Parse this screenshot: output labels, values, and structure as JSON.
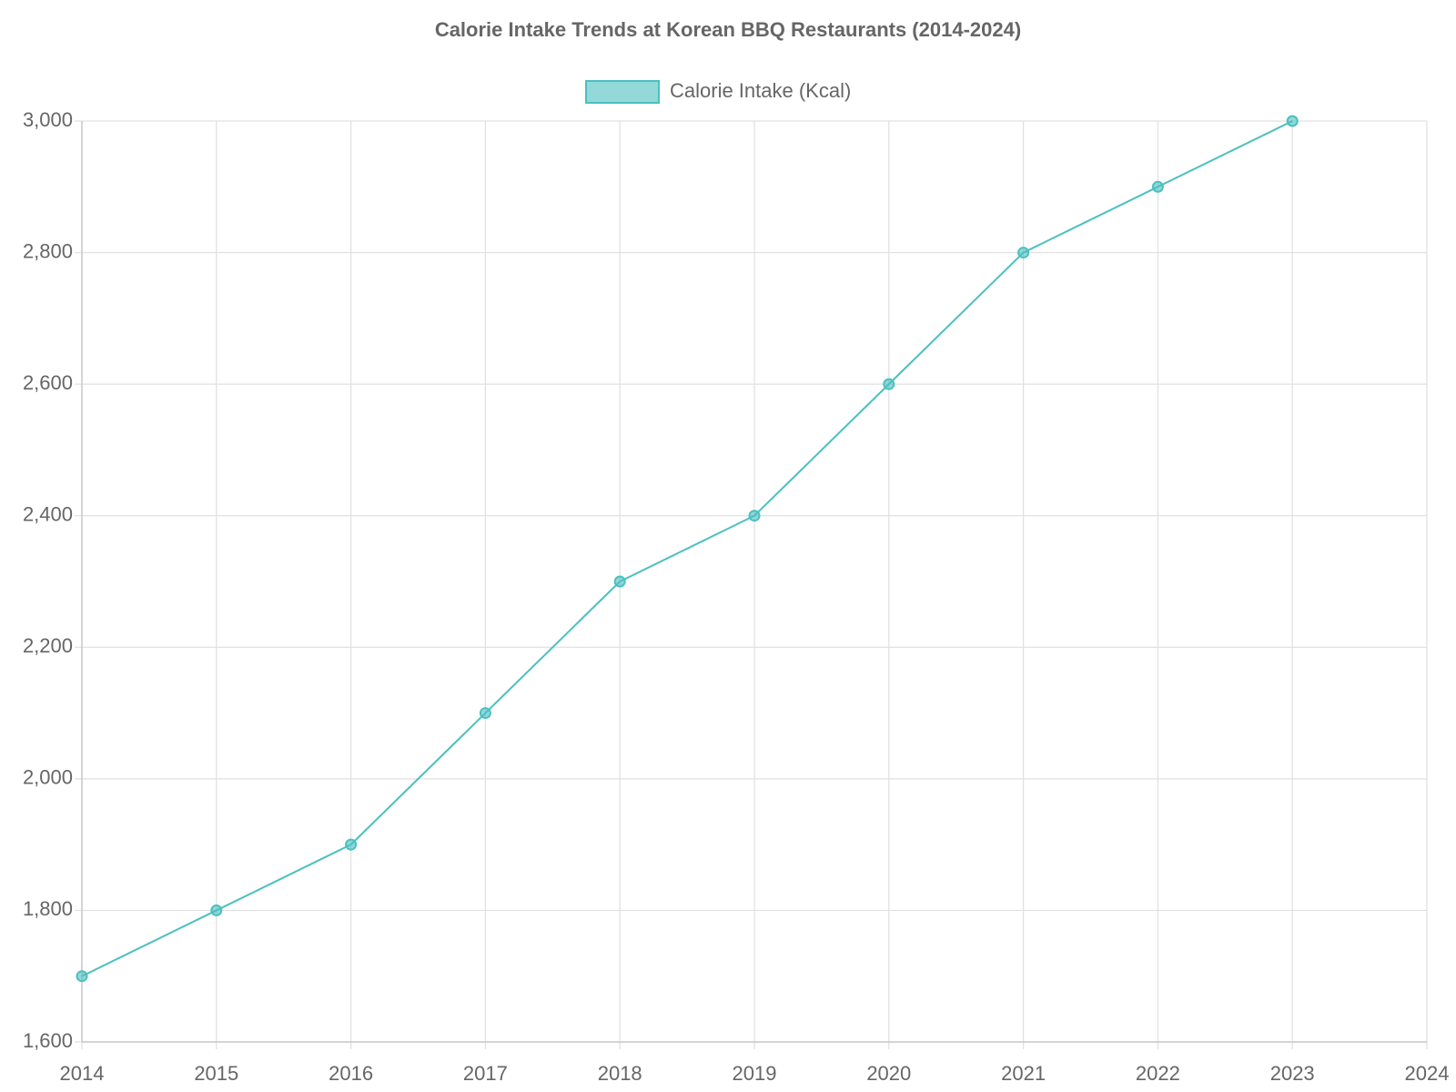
{
  "chart_data": {
    "type": "line",
    "title": "Calorie Intake Trends at Korean BBQ Restaurants (2014-2024)",
    "x": [
      2014,
      2015,
      2016,
      2017,
      2018,
      2019,
      2020,
      2021,
      2022,
      2023
    ],
    "series": [
      {
        "name": "Calorie Intake (Kcal)",
        "color": "#4bc0c0",
        "values": [
          1700,
          1800,
          1900,
          2100,
          2300,
          2400,
          2600,
          2800,
          2900,
          3000
        ]
      }
    ],
    "xlim": [
      2014,
      2024
    ],
    "xticks": [
      2014,
      2015,
      2016,
      2017,
      2018,
      2019,
      2020,
      2021,
      2022,
      2023,
      2024
    ],
    "ylim": [
      1600,
      3000
    ],
    "yticks": [
      {
        "value": 1600,
        "label": "1,600"
      },
      {
        "value": 1800,
        "label": "1,800"
      },
      {
        "value": 2000,
        "label": "2,000"
      },
      {
        "value": 2200,
        "label": "2,200"
      },
      {
        "value": 2400,
        "label": "2,400"
      },
      {
        "value": 2600,
        "label": "2,600"
      },
      {
        "value": 2800,
        "label": "2,800"
      },
      {
        "value": 3000,
        "label": "3,000"
      }
    ],
    "grid": true,
    "legend": "top"
  }
}
